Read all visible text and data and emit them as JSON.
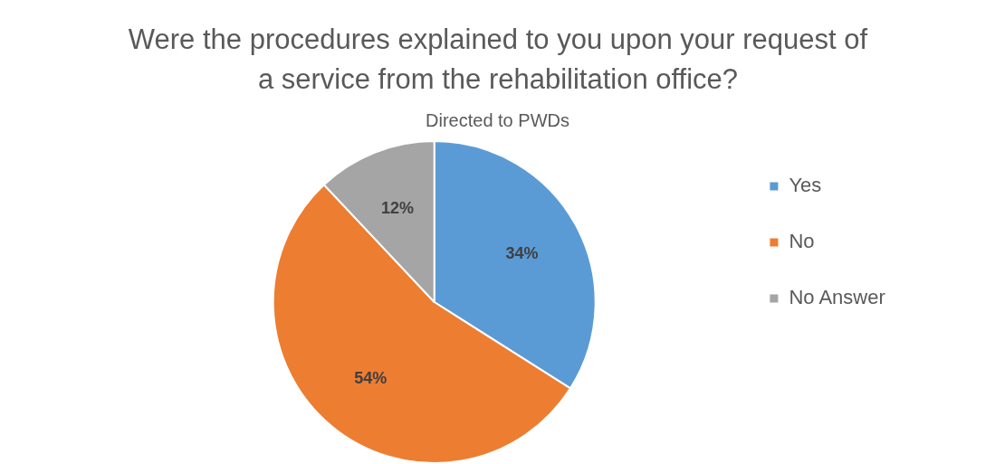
{
  "chart_data": {
    "type": "pie",
    "title": "Were the procedures explained to you upon your request of a service from the rehabilitation office?",
    "subtitle": "Directed to PWDs",
    "categories": [
      "Yes",
      "No",
      "No Answer"
    ],
    "values": [
      34,
      54,
      12
    ],
    "colors": [
      "#5b9bd5",
      "#ed7d31",
      "#a5a5a5"
    ],
    "value_labels": [
      "34%",
      "54%",
      "12%"
    ],
    "legend": "right"
  }
}
